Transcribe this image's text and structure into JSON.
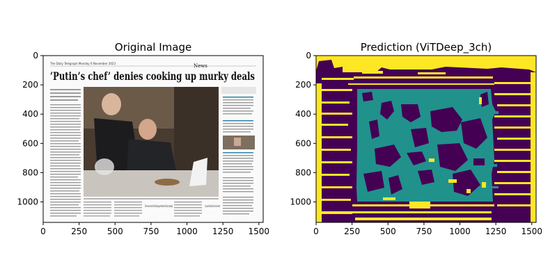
{
  "chart_data": [
    {
      "type": "heatmap",
      "title": "Original Image",
      "xlim": [
        0,
        1530
      ],
      "ylim": [
        1140,
        0
      ],
      "xticks": [
        0,
        250,
        500,
        750,
        1000,
        1250,
        1500
      ],
      "yticks": [
        0,
        200,
        400,
        600,
        800,
        1000
      ],
      "xlabel": "",
      "ylabel": "",
      "image_text": {
        "masthead": "The Daily Telegraph Monday 6 November 2023",
        "section": "News",
        "headline": "‘Putin’s chef’ denies cooking up murky deals",
        "pull_quote": "There never served in the Russian government and it have repeating",
        "pull_quote_2": "I can say with confidence that I have no connection"
      }
    },
    {
      "type": "heatmap",
      "title": "Prediction (ViTDeep_3ch)",
      "xlim": [
        0,
        1530
      ],
      "ylim": [
        1140,
        0
      ],
      "xticks": [
        0,
        250,
        500,
        750,
        1000,
        1250,
        1500
      ],
      "yticks": [
        0,
        200,
        400,
        600,
        800,
        1000
      ],
      "xlabel": "",
      "ylabel": "",
      "colormap": "viridis",
      "classes": [
        {
          "color": "#440154"
        },
        {
          "color": "#21918c"
        },
        {
          "color": "#fde725"
        }
      ],
      "regions": [
        {
          "class": 2,
          "x": [
            0,
            1530
          ],
          "y": [
            0,
            1140
          ]
        },
        {
          "class": 0,
          "x": [
            0,
            1530
          ],
          "y": [
            120,
            1140
          ]
        },
        {
          "class": 1,
          "x": [
            300,
            1270
          ],
          "y": [
            210,
            1010
          ]
        },
        {
          "class": 0,
          "x": [
            420,
            1150
          ],
          "y": [
            270,
            980
          ]
        }
      ]
    }
  ]
}
